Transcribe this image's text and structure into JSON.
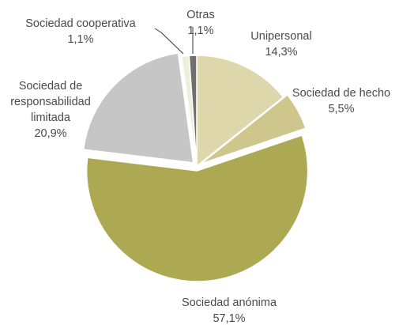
{
  "chart_data": {
    "type": "pie",
    "title": "",
    "slices": [
      {
        "label": "Unipersonal",
        "label_lines": [
          "Unipersonal"
        ],
        "value": 14.3,
        "value_label": "14,3%",
        "color": "#ddd7ab"
      },
      {
        "label": "Sociedad de hecho",
        "label_lines": [
          "Sociedad de hecho"
        ],
        "value": 5.5,
        "value_label": "5,5%",
        "color": "#cfc68c"
      },
      {
        "label": "Sociedad anónima",
        "label_lines": [
          "Sociedad anónima"
        ],
        "value": 57.1,
        "value_label": "57,1%",
        "color": "#ada852"
      },
      {
        "label": "Sociedad de responsabilidad limitada",
        "label_lines": [
          "Sociedad de",
          "responsabilidad",
          "limitada"
        ],
        "value": 20.9,
        "value_label": "20,9%",
        "color": "#c6c6c6"
      },
      {
        "label": "Sociedad cooperativa",
        "label_lines": [
          "Sociedad cooperativa"
        ],
        "value": 1.1,
        "value_label": "1,1%",
        "color": "#eeeedd"
      },
      {
        "label": "Otras",
        "label_lines": [
          "Otras"
        ],
        "value": 1.1,
        "value_label": "1,1%",
        "color": "#6f6f6f"
      }
    ],
    "start_angle": "12 o'clock",
    "direction": "clockwise",
    "exploded_slices": [
      "Sociedad de hecho",
      "Sociedad anónima",
      "Sociedad de responsabilidad limitada"
    ]
  }
}
